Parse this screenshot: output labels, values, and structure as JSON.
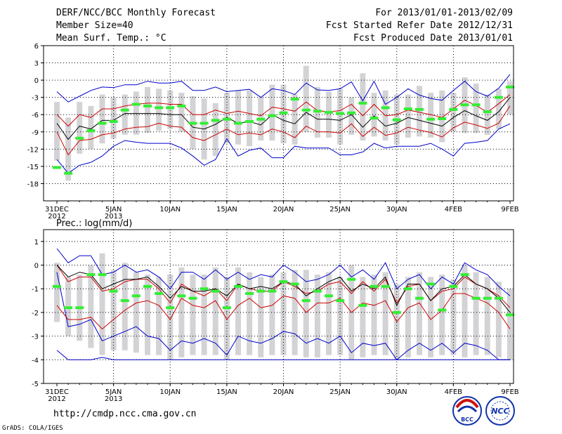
{
  "header": {
    "title": "DERF/NCC/BCC Monthly Forecast",
    "member_size": "Member Size=40",
    "variable": "Mean Surf. Temp.: °C",
    "period": "For 2013/01/01-2013/02/09",
    "fcst_started": "Fcst Started Refer Date 2012/12/31",
    "fcst_produced": "Fcst Produced Date 2013/01/01"
  },
  "footer": {
    "url": "http://cmdp.ncc.cma.gov.cn",
    "credit": "GrADS: COLA/IGES"
  },
  "logos": {
    "bcc": "BCC",
    "ncc": "NCC"
  },
  "colors": {
    "ensemble_max_min": "#0000cc",
    "percentile": "#cc0000",
    "mean": "#000000",
    "observed": "#33ee33",
    "box": "#d3d3d6",
    "grid": "#000000"
  },
  "chart_data": [
    {
      "type": "line",
      "title": "Mean Surf. Temp.: °C",
      "x_tick_labels": [
        "31DEC",
        "5JAN",
        "10JAN",
        "15JAN",
        "20JAN",
        "25JAN",
        "30JAN",
        "4FEB",
        "9FEB"
      ],
      "x_year_labels": [
        "2012",
        "2013"
      ],
      "x_days": 41,
      "ylim": [
        -21,
        6
      ],
      "yticks": [
        6,
        3,
        0,
        -3,
        -6,
        -9,
        -12,
        -15,
        -18
      ],
      "series": [
        {
          "name": "max",
          "values": [
            -2,
            -3.8,
            -2.8,
            -1.8,
            -1.2,
            -1.3,
            -0.8,
            -0.8,
            -0.2,
            -0.5,
            -0.5,
            -0.2,
            -1.8,
            -1.8,
            -1.2,
            -2,
            -1.8,
            -1.6,
            -3,
            -1.5,
            -1.8,
            -2.5,
            -0.5,
            -1.7,
            -1.8,
            -1.5,
            -0.3,
            -3.6,
            -0.2,
            -4.2,
            -3,
            -1.5,
            -2.6,
            -3.2,
            -3.5,
            -1.8,
            -0.2,
            -2,
            -2.8,
            -1.4,
            1
          ]
        },
        {
          "name": "p75",
          "values": [
            -6,
            -8,
            -6,
            -6.5,
            -5,
            -5,
            -4.5,
            -4.2,
            -4,
            -4,
            -4.2,
            -4.2,
            -6,
            -6,
            -5.2,
            -5.8,
            -5.4,
            -5.8,
            -6.2,
            -4.7,
            -5,
            -5.4,
            -3.8,
            -5.3,
            -5.5,
            -5.3,
            -4.2,
            -6.2,
            -4.2,
            -6.2,
            -6,
            -5.2,
            -5.6,
            -6,
            -6.5,
            -5,
            -3.5,
            -4.4,
            -5.6,
            -4.1,
            -2.5
          ]
        },
        {
          "name": "mean",
          "values": [
            -7.5,
            -10.3,
            -8,
            -8.5,
            -7,
            -7,
            -5.8,
            -5.8,
            -5.8,
            -5.8,
            -6,
            -6,
            -8.2,
            -8.5,
            -7.7,
            -6.5,
            -7.5,
            -7.2,
            -7.8,
            -6,
            -7,
            -7.6,
            -5.6,
            -6.8,
            -6.8,
            -7,
            -6,
            -8.2,
            -6.2,
            -8,
            -7.5,
            -6.5,
            -7,
            -7.5,
            -8,
            -6.5,
            -5.3,
            -6.2,
            -7,
            -5.5,
            -3
          ]
        },
        {
          "name": "p25",
          "values": [
            -9,
            -13,
            -10.5,
            -10.3,
            -9.5,
            -9.2,
            -8.5,
            -8.2,
            -8.1,
            -7.5,
            -8,
            -8.2,
            -10,
            -10.5,
            -9.5,
            -8.5,
            -9.5,
            -9.2,
            -9.5,
            -8.5,
            -9,
            -10,
            -8,
            -9,
            -9,
            -9.2,
            -7.6,
            -9.8,
            -8.2,
            -9.6,
            -9.2,
            -8.2,
            -8.7,
            -9.1,
            -9.9,
            -8.3,
            -7.3,
            -7.8,
            -8.4,
            -7.5,
            -4.5
          ]
        },
        {
          "name": "min",
          "values": [
            -13.8,
            -16.2,
            -14.8,
            -14.3,
            -13.2,
            -11.5,
            -10.5,
            -10.8,
            -11,
            -11,
            -11,
            -11.8,
            -13.2,
            -14.8,
            -13.8,
            -10.2,
            -13.2,
            -12.2,
            -11.8,
            -13.5,
            -13.5,
            -11.5,
            -11.8,
            -11.8,
            -11.8,
            -13,
            -13,
            -12.5,
            -11,
            -11.8,
            -11.5,
            -11.5,
            -11.5,
            -11,
            -12,
            -13.2,
            -11,
            -10.8,
            -10.5,
            -8.5,
            -7.6
          ]
        },
        {
          "name": "observed",
          "values": [
            -15.2,
            -16.2,
            -10.1,
            -8.8,
            -7.5,
            -7.2,
            -5.2,
            -4.2,
            -4.5,
            -4.8,
            -4.8,
            -4.5,
            -7.5,
            -7.5,
            -7,
            -6.8,
            -7.5,
            -7.2,
            -6.8,
            -6.2,
            -5.7,
            -3.3,
            -5.2,
            -5.4,
            -5.6,
            -5.8,
            -5.7,
            -4,
            -6.6,
            -4.8,
            -6.9,
            -5,
            -5.1,
            -6.8,
            -6.7,
            -5.1,
            -4.3,
            -4.3,
            -5.5,
            -3,
            -1.2
          ]
        },
        {
          "name": "box_top",
          "values": [
            -3.8,
            -6.5,
            -3.8,
            -4.5,
            -2.5,
            -3,
            -2.5,
            -2,
            -1.2,
            -1.5,
            -1.8,
            -2.2,
            -2.8,
            -3.2,
            -4,
            -2.2,
            -1.8,
            -1.8,
            -3,
            -0.8,
            -0.8,
            -2.5,
            2.5,
            -1.2,
            -2,
            -1.5,
            -3,
            1.2,
            -2.2,
            -1.8,
            -2.5,
            -2.5,
            -1,
            -2.2,
            -1.8,
            -2.2,
            0.5,
            -0.6,
            -2.5,
            -1.5,
            -0.2
          ]
        },
        {
          "name": "box_bottom",
          "values": [
            -14,
            -17.5,
            -12.8,
            -12,
            -11,
            -10.2,
            -9.5,
            -9.5,
            -9.2,
            -8.8,
            -8.5,
            -9,
            -12,
            -13.8,
            -13.2,
            -11,
            -11.2,
            -11.5,
            -10.5,
            -10.5,
            -11,
            -11.2,
            -9,
            -10,
            -10,
            -11.2,
            -9.5,
            -10.5,
            -9.8,
            -10.5,
            -11.2,
            -10,
            -9.8,
            -10,
            -10.8,
            -9,
            -9.2,
            -9.2,
            -9.5,
            -8.5,
            -6
          ]
        }
      ]
    },
    {
      "type": "line",
      "title": "Prec.: log(mm/d)",
      "x_tick_labels": [
        "31DEC",
        "5JAN",
        "10JAN",
        "15JAN",
        "20JAN",
        "25JAN",
        "30JAN",
        "4FEB",
        "9FEB"
      ],
      "x_year_labels": [
        "2012",
        "2013"
      ],
      "x_days": 41,
      "ylim": [
        -5,
        1.5
      ],
      "yticks": [
        1,
        0,
        -1,
        -2,
        -3,
        -4,
        -5
      ],
      "series": [
        {
          "name": "max",
          "values": [
            0.7,
            0.1,
            0.4,
            0.4,
            -0.4,
            -0.3,
            0,
            -0.3,
            -0.2,
            -0.5,
            -1,
            -0.3,
            -0.3,
            -0.6,
            -0.2,
            -0.6,
            -0.3,
            -0.6,
            -0.4,
            -0.5,
            0,
            -0.3,
            -0.7,
            -0.6,
            -0.4,
            0,
            -0.5,
            -0.2,
            -0.6,
            0.1,
            -1,
            -0.6,
            -0.4,
            -1,
            -0.5,
            -0.8,
            0.1,
            -0.2,
            -0.4,
            -0.9,
            -1.3
          ]
        },
        {
          "name": "p75",
          "values": [
            0,
            -0.7,
            -0.5,
            -0.5,
            -1.1,
            -1,
            -0.7,
            -0.6,
            -0.6,
            -1,
            -1.6,
            -0.8,
            -1.1,
            -1.3,
            -1,
            -1.5,
            -0.8,
            -1,
            -1.1,
            -1.1,
            -0.7,
            -0.9,
            -1.2,
            -1.1,
            -0.8,
            -0.7,
            -1.2,
            -0.7,
            -1.1,
            -0.6,
            -1.6,
            -0.9,
            -0.8,
            -1.5,
            -1.1,
            -1,
            -0.5,
            -0.8,
            -1,
            -1.3,
            -1.8
          ]
        },
        {
          "name": "mean",
          "values": [
            0,
            -0.5,
            -0.3,
            -0.4,
            -1,
            -0.8,
            -0.6,
            -0.6,
            -0.5,
            -0.9,
            -1.4,
            -0.9,
            -1.1,
            -1.1,
            -1,
            -1.3,
            -0.8,
            -1,
            -0.9,
            -1,
            -0.7,
            -0.8,
            -1.3,
            -1,
            -0.7,
            -0.5,
            -1.1,
            -0.8,
            -1,
            -0.5,
            -1.7,
            -0.8,
            -0.8,
            -1.5,
            -1,
            -0.9,
            -0.4,
            -0.8,
            -1,
            -1.4,
            -2
          ]
        },
        {
          "name": "p25",
          "values": [
            -1.7,
            -2.3,
            -2.3,
            -2.2,
            -2.7,
            -2.3,
            -1.9,
            -1.6,
            -1.5,
            -1.7,
            -2.3,
            -1.4,
            -1.7,
            -1.8,
            -1.5,
            -2.3,
            -1.7,
            -1.4,
            -1.8,
            -1.7,
            -1.3,
            -1.4,
            -2,
            -1.6,
            -1.6,
            -1.4,
            -2,
            -1.6,
            -1.7,
            -1.5,
            -2.4,
            -1.8,
            -1.6,
            -2.3,
            -1.9,
            -1.2,
            -1.2,
            -1.4,
            -1.6,
            -2,
            -2.7
          ]
        },
        {
          "name": "min",
          "values": [
            -0.3,
            -2.6,
            -2.5,
            -2.3,
            -3.2,
            -3,
            -2.8,
            -2.6,
            -3,
            -3.1,
            -3.6,
            -3.2,
            -3.3,
            -3.1,
            -3.3,
            -3.8,
            -3,
            -3.2,
            -3.3,
            -3.1,
            -2.8,
            -2.9,
            -3.3,
            -3.1,
            -3.3,
            -3,
            -3.7,
            -3.3,
            -3.4,
            -3.3,
            -4,
            -3.6,
            -3.3,
            -3.6,
            -3.3,
            -3.7,
            -3.3,
            -3.4,
            -3.6,
            -4,
            -4
          ]
        },
        {
          "name": "floor",
          "values": [
            -3.6,
            -4,
            -4,
            -4,
            -3.9,
            -4,
            -4,
            -4,
            -4,
            -4,
            -4,
            -4,
            -4,
            -4,
            -4,
            -4,
            -4,
            -4,
            -4,
            -4,
            -4,
            -4,
            -4,
            -4,
            -4,
            -4,
            -4,
            -4,
            -4,
            -4,
            -4,
            -4,
            -4,
            -4,
            -4,
            -4,
            -4,
            -4,
            -4,
            -4,
            -4
          ]
        },
        {
          "name": "observed",
          "values": [
            -0.9,
            -1.8,
            -1.8,
            -0.4,
            -0.4,
            -1.1,
            -1.5,
            -1.3,
            -0.9,
            -1.2,
            -1.8,
            -1.3,
            -1.4,
            -1,
            -1.1,
            -1.8,
            -0.9,
            -1.2,
            -1.1,
            -1.1,
            -0.7,
            -0.8,
            -1.5,
            -1.1,
            -1.3,
            -1.5,
            -0.6,
            -1.7,
            -0.9,
            -0.9,
            -2,
            -1,
            -1.4,
            -0.8,
            -1.9,
            -0.9,
            -0.4,
            -1.4,
            -1.4,
            -1.4,
            -2.1
          ]
        },
        {
          "name": "box_top",
          "values": [
            0.1,
            -0.5,
            -0.4,
            0,
            0.5,
            -0.2,
            0.1,
            -0.3,
            -0.4,
            -0.5,
            -0.4,
            -0.1,
            -0.4,
            -0.4,
            -0.1,
            -0.5,
            -0.1,
            -0.3,
            -0.5,
            -0.4,
            -0.3,
            -0.2,
            -0.2,
            -0.4,
            -0.3,
            -0.5,
            0,
            -0.5,
            -0.4,
            -0.3,
            -0.8,
            -0.5,
            -0.3,
            -0.5,
            -0.4,
            -0.6,
            0,
            -0.3,
            -0.5,
            -0.7,
            -1
          ]
        },
        {
          "name": "box_bottom",
          "values": [
            -2.4,
            -3,
            -3.2,
            -3.5,
            -3.8,
            -3.6,
            -3.6,
            -3.7,
            -3.8,
            -3.8,
            -4,
            -3.9,
            -3.8,
            -3.8,
            -3.8,
            -4,
            -3.8,
            -3.8,
            -3.9,
            -3.8,
            -3.8,
            -3.8,
            -3.9,
            -3.9,
            -3.8,
            -3.8,
            -4,
            -3.9,
            -3.8,
            -3.8,
            -4,
            -3.9,
            -3.8,
            -3.9,
            -3.8,
            -3.8,
            -3.9,
            -3.8,
            -3.8,
            -3.9,
            -4
          ]
        }
      ]
    }
  ]
}
